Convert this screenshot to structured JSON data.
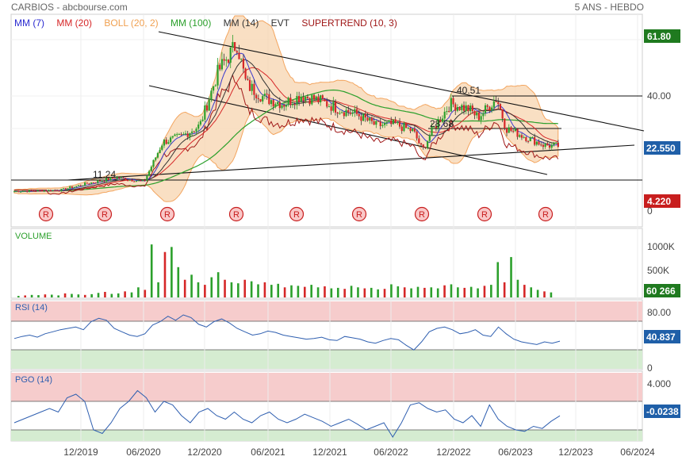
{
  "header": {
    "title": "CARBIOS - abcbourse.com",
    "period": "5 ANS - HEBDO"
  },
  "colors": {
    "price_line": "#1b1b6e",
    "boll_fill": "#f8d7b4",
    "boll_line": "#f3a55f",
    "mm7": "#3a3acd",
    "mm20": "#d62728",
    "mm100": "#2ca02c",
    "mm14": "#333333",
    "supertrend": "#a01818",
    "badge_green": "#1f7a1f",
    "badge_blue": "#1f5fa8",
    "badge_red": "#c81e1e",
    "rsi_zone_top": "#f6cccc",
    "rsi_zone_bottom": "#d5ecd1",
    "osc_line": "#2f5fb0",
    "volume_up": "#2ca02c",
    "volume_down": "#d62728"
  },
  "legend": [
    {
      "label": "MM (7)",
      "color": "#2a2ad0"
    },
    {
      "label": "MM (20)",
      "color": "#d62728"
    },
    {
      "label": "BOLL (20, 2)",
      "color": "#f0a050"
    },
    {
      "label": "MM (100)",
      "color": "#2ca02c"
    },
    {
      "label": "MM (14)",
      "color": "#333333"
    },
    {
      "label": "EVT",
      "color": "#333333"
    },
    {
      "label": "SUPERTREND (10, 3)",
      "color": "#a01818"
    }
  ],
  "chart_data": {
    "type": "line",
    "title": "CARBIOS",
    "price_axis": {
      "ticks": [
        "61.80",
        "40.00",
        "22.550",
        "4.220",
        "0"
      ],
      "last_value": "22.550",
      "high_badge": "61.80",
      "low_badge": "4.220",
      "ylim": [
        0,
        70
      ]
    },
    "annotations": [
      "40.51",
      "28.68",
      "11.24"
    ],
    "events_label": "R",
    "events_count": 9,
    "x_labels": [
      "12/2019",
      "06/2020",
      "12/2020",
      "06/2021",
      "12/2021",
      "06/2022",
      "12/2022",
      "06/2023",
      "12/2023",
      "06/2024"
    ],
    "price_series": [
      {
        "date": "2019-01",
        "close": 6.0
      },
      {
        "date": "2019-06",
        "close": 6.5
      },
      {
        "date": "2019-09",
        "close": 9.0
      },
      {
        "date": "2019-12",
        "close": 11.0
      },
      {
        "date": "2020-03",
        "close": 9.5
      },
      {
        "date": "2020-05",
        "close": 24.0
      },
      {
        "date": "2020-07",
        "close": 26.0
      },
      {
        "date": "2020-09",
        "close": 30.0
      },
      {
        "date": "2020-11",
        "close": 50.0
      },
      {
        "date": "2021-01",
        "close": 60.0
      },
      {
        "date": "2021-02",
        "close": 45.0
      },
      {
        "date": "2021-04",
        "close": 40.0
      },
      {
        "date": "2021-06",
        "close": 38.0
      },
      {
        "date": "2021-08",
        "close": 41.0
      },
      {
        "date": "2021-10",
        "close": 39.0
      },
      {
        "date": "2021-12",
        "close": 36.0
      },
      {
        "date": "2022-02",
        "close": 34.0
      },
      {
        "date": "2022-04",
        "close": 30.0
      },
      {
        "date": "2022-06",
        "close": 30.5
      },
      {
        "date": "2022-08",
        "close": 28.0
      },
      {
        "date": "2022-09",
        "close": 21.0
      },
      {
        "date": "2022-10",
        "close": 28.0
      },
      {
        "date": "2022-12",
        "close": 38.0
      },
      {
        "date": "2023-02",
        "close": 36.0
      },
      {
        "date": "2023-03",
        "close": 33.0
      },
      {
        "date": "2023-05",
        "close": 40.0
      },
      {
        "date": "2023-06",
        "close": 29.0
      },
      {
        "date": "2023-08",
        "close": 26.0
      },
      {
        "date": "2023-10",
        "close": 23.0
      },
      {
        "date": "2023-11",
        "close": 22.55
      }
    ],
    "volume": {
      "label": "VOLUME",
      "ticks": [
        "1000K",
        "500K"
      ],
      "last_value": "60 266",
      "values_k": [
        30,
        40,
        50,
        45,
        60,
        55,
        40,
        80,
        70,
        60,
        50,
        65,
        90,
        110,
        70,
        80,
        120,
        100,
        200,
        150,
        1050,
        300,
        900,
        1000,
        600,
        350,
        450,
        300,
        250,
        400,
        500,
        350,
        300,
        280,
        350,
        320,
        260,
        300,
        250,
        270,
        200,
        240,
        230,
        210,
        250,
        200,
        220,
        180,
        190,
        170,
        230,
        200,
        180,
        190,
        160,
        170,
        260,
        220,
        200,
        180,
        210,
        190,
        200,
        180,
        240,
        260,
        200,
        190,
        210,
        180,
        230,
        250,
        700,
        300,
        800,
        350,
        250,
        200,
        150,
        120,
        100
      ]
    },
    "rsi": {
      "label": "RSI (14)",
      "ticks": [
        "80.00",
        "0"
      ],
      "last_value": "40.837",
      "values": [
        45,
        48,
        50,
        47,
        52,
        55,
        58,
        60,
        62,
        58,
        70,
        75,
        72,
        60,
        55,
        50,
        48,
        52,
        65,
        70,
        78,
        72,
        80,
        76,
        66,
        62,
        70,
        74,
        68,
        60,
        55,
        50,
        52,
        56,
        54,
        50,
        48,
        46,
        44,
        45,
        47,
        43,
        42,
        48,
        46,
        44,
        40,
        38,
        42,
        45,
        43,
        35,
        28,
        40,
        55,
        60,
        62,
        58,
        52,
        54,
        58,
        50,
        48,
        62,
        52,
        44,
        40,
        38,
        36,
        40,
        38,
        41
      ]
    },
    "pgo": {
      "label": "PGO (14)",
      "ticks": [
        "4.000"
      ],
      "last_value": "-0.0238",
      "values": [
        -1.0,
        -0.5,
        0.0,
        0.5,
        1.0,
        0.5,
        2.5,
        3.0,
        2.0,
        -2.0,
        -2.5,
        -1.0,
        1.0,
        2.0,
        3.5,
        2.5,
        0.5,
        2.0,
        1.5,
        0.0,
        -1.0,
        0.5,
        1.0,
        0.0,
        -0.5,
        0.5,
        -0.5,
        -1.0,
        0.0,
        0.5,
        -0.5,
        -1.0,
        -0.5,
        0.2,
        -0.3,
        -0.8,
        -1.5,
        -1.0,
        -0.5,
        -1.2,
        -2.0,
        -1.5,
        -1.0,
        -3.0,
        -1.0,
        1.5,
        1.8,
        1.0,
        0.5,
        0.8,
        -0.5,
        -1.0,
        0.0,
        -1.5,
        1.5,
        -0.5,
        -1.5,
        -2.0,
        -2.2,
        -1.5,
        -1.8,
        -0.8,
        -0.02
      ]
    }
  }
}
